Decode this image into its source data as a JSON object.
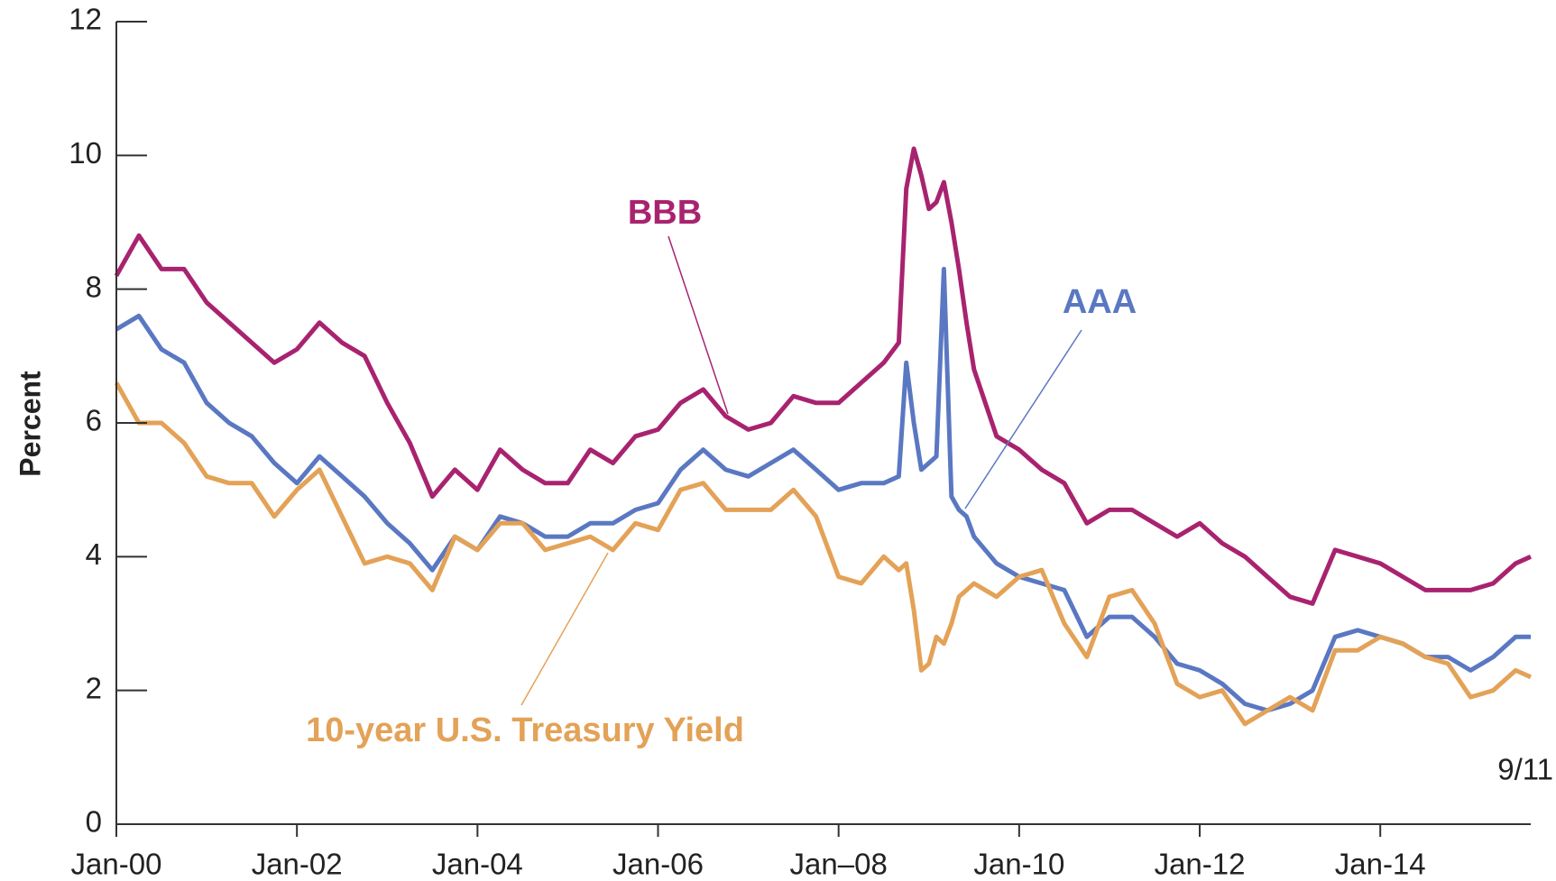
{
  "chart_data": {
    "type": "line",
    "y_label": "Percent",
    "end_label": "9/11",
    "x": [
      "2000-01",
      "2000-04",
      "2000-07",
      "2000-10",
      "2001-01",
      "2001-04",
      "2001-07",
      "2001-10",
      "2002-01",
      "2002-04",
      "2002-07",
      "2002-10",
      "2003-01",
      "2003-04",
      "2003-07",
      "2003-10",
      "2004-01",
      "2004-04",
      "2004-07",
      "2004-10",
      "2005-01",
      "2005-04",
      "2005-07",
      "2005-10",
      "2006-01",
      "2006-04",
      "2006-07",
      "2006-10",
      "2007-01",
      "2007-04",
      "2007-07",
      "2007-10",
      "2008-01",
      "2008-04",
      "2008-07",
      "2008-09",
      "2008-10",
      "2008-11",
      "2008-12",
      "2009-01",
      "2009-02",
      "2009-03",
      "2009-04",
      "2009-05",
      "2009-06",
      "2009-07",
      "2009-10",
      "2010-01",
      "2010-04",
      "2010-07",
      "2010-10",
      "2011-01",
      "2011-04",
      "2011-07",
      "2011-10",
      "2012-01",
      "2012-04",
      "2012-07",
      "2012-10",
      "2013-01",
      "2013-04",
      "2013-07",
      "2013-10",
      "2014-01",
      "2014-04",
      "2014-07",
      "2014-10",
      "2015-01",
      "2015-04",
      "2015-07",
      "2015-09"
    ],
    "series": [
      {
        "name": "BBB",
        "color": "#a8236f",
        "values": [
          8.2,
          8.8,
          8.3,
          8.3,
          7.8,
          7.5,
          7.2,
          6.9,
          7.1,
          7.5,
          7.2,
          7.0,
          6.3,
          5.7,
          4.9,
          5.3,
          5.0,
          5.6,
          5.3,
          5.1,
          5.1,
          5.6,
          5.4,
          5.8,
          5.9,
          6.3,
          6.5,
          6.1,
          5.9,
          6.0,
          6.4,
          6.3,
          6.3,
          6.6,
          6.9,
          7.2,
          9.5,
          10.1,
          9.7,
          9.2,
          9.3,
          9.6,
          9.0,
          8.3,
          7.5,
          6.8,
          5.8,
          5.6,
          5.3,
          5.1,
          4.5,
          4.7,
          4.7,
          4.5,
          4.3,
          4.5,
          4.2,
          4.0,
          3.7,
          3.4,
          3.3,
          4.1,
          4.0,
          3.9,
          3.7,
          3.5,
          3.5,
          3.5,
          3.6,
          3.9,
          4.0
        ]
      },
      {
        "name": "AAA",
        "color": "#5a78c2",
        "values": [
          7.4,
          7.6,
          7.1,
          6.9,
          6.3,
          6.0,
          5.8,
          5.4,
          5.1,
          5.5,
          5.2,
          4.9,
          4.5,
          4.2,
          3.8,
          4.3,
          4.1,
          4.6,
          4.5,
          4.3,
          4.3,
          4.5,
          4.5,
          4.7,
          4.8,
          5.3,
          5.6,
          5.3,
          5.2,
          5.4,
          5.6,
          5.3,
          5.0,
          5.1,
          5.1,
          5.2,
          6.9,
          6.0,
          5.3,
          5.4,
          5.5,
          8.3,
          4.9,
          4.7,
          4.6,
          4.3,
          3.9,
          3.7,
          3.6,
          3.5,
          2.8,
          3.1,
          3.1,
          2.8,
          2.4,
          2.3,
          2.1,
          1.8,
          1.7,
          1.8,
          2.0,
          2.8,
          2.9,
          2.8,
          2.7,
          2.5,
          2.5,
          2.3,
          2.5,
          2.8,
          2.8
        ]
      },
      {
        "name": "10-year U.S. Treasury Yield",
        "color": "#e3a257",
        "values": [
          6.6,
          6.0,
          6.0,
          5.7,
          5.2,
          5.1,
          5.1,
          4.6,
          5.0,
          5.3,
          4.6,
          3.9,
          4.0,
          3.9,
          3.5,
          4.3,
          4.1,
          4.5,
          4.5,
          4.1,
          4.2,
          4.3,
          4.1,
          4.5,
          4.4,
          5.0,
          5.1,
          4.7,
          4.7,
          4.7,
          5.0,
          4.6,
          3.7,
          3.6,
          4.0,
          3.8,
          3.9,
          3.2,
          2.3,
          2.4,
          2.8,
          2.7,
          3.0,
          3.4,
          3.5,
          3.6,
          3.4,
          3.7,
          3.8,
          3.0,
          2.5,
          3.4,
          3.5,
          3.0,
          2.1,
          1.9,
          2.0,
          1.5,
          1.7,
          1.9,
          1.7,
          2.6,
          2.6,
          2.8,
          2.7,
          2.5,
          2.4,
          1.9,
          2.0,
          2.3,
          2.2
        ]
      }
    ],
    "xlim": [
      "2000-01",
      "2015-09"
    ],
    "xticks": [
      {
        "value": "2000-01",
        "label": "Jan-00"
      },
      {
        "value": "2002-01",
        "label": "Jan-02"
      },
      {
        "value": "2004-01",
        "label": "Jan-04"
      },
      {
        "value": "2006-01",
        "label": "Jan-06"
      },
      {
        "value": "2008-01",
        "label": "Jan–08"
      },
      {
        "value": "2010-01",
        "label": "Jan-10"
      },
      {
        "value": "2012-01",
        "label": "Jan-12"
      },
      {
        "value": "2014-01",
        "label": "Jan-14"
      }
    ],
    "ylim": [
      0,
      12
    ],
    "yticks": [
      0,
      2,
      4,
      6,
      8,
      10,
      12
    ]
  }
}
